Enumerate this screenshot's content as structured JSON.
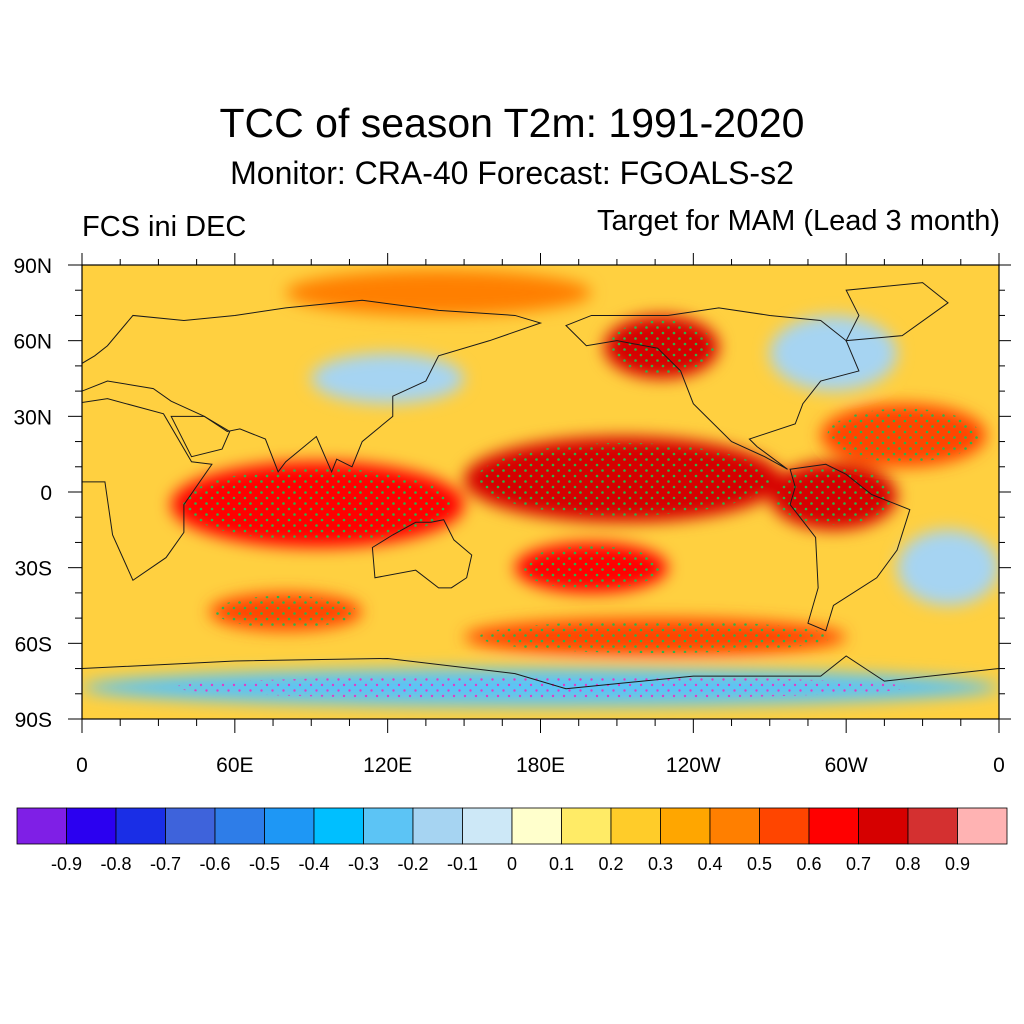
{
  "title": "TCC of season T2m: 1991-2020",
  "subtitle": "Monitor: CRA-40   Forecast: FGOALS-s2",
  "left_label": "FCS ini DEC",
  "right_label": "Target for MAM (Lead 3 month)",
  "map": {
    "projection": "cylindrical-equidistant",
    "lon_range": [
      0,
      360
    ],
    "lat_range": [
      -90,
      90
    ],
    "y_tick_labels": [
      "90N",
      "60N",
      "30N",
      "0",
      "30S",
      "60S",
      "90S"
    ],
    "x_tick_labels": [
      "0",
      "60E",
      "120E",
      "180E",
      "120W",
      "60W",
      "0"
    ],
    "stippling": "green dots mark statistically significant correlation",
    "anomaly_regions": [
      {
        "name": "central-east-pacific",
        "lon": [
          150,
          275
        ],
        "lat": [
          -12,
          22
        ],
        "level": 0.7
      },
      {
        "name": "indian-ocean-maritime",
        "lon": [
          35,
          150
        ],
        "lat": [
          -22,
          12
        ],
        "level": 0.6
      },
      {
        "name": "north-pacific-alaska",
        "lon": [
          205,
          250
        ],
        "lat": [
          45,
          70
        ],
        "level": 0.7
      },
      {
        "name": "south-pacific",
        "lon": [
          170,
          230
        ],
        "lat": [
          -40,
          -20
        ],
        "level": 0.6
      },
      {
        "name": "tropical-south-america",
        "lon": [
          270,
          320
        ],
        "lat": [
          -15,
          12
        ],
        "level": 0.7
      },
      {
        "name": "southern-ocean-band",
        "lon": [
          150,
          300
        ],
        "lat": [
          -65,
          -50
        ],
        "level": 0.5
      },
      {
        "name": "south-indian-ocean",
        "lon": [
          50,
          110
        ],
        "lat": [
          -55,
          -40
        ],
        "level": 0.5
      },
      {
        "name": "north-atlantic",
        "lon": [
          290,
          355
        ],
        "lat": [
          10,
          35
        ],
        "level": 0.5
      },
      {
        "name": "eurasia-north",
        "lon": [
          80,
          200
        ],
        "lat": [
          70,
          88
        ],
        "level": 0.4
      },
      {
        "name": "east-asia",
        "lon": [
          90,
          150
        ],
        "lat": [
          35,
          55
        ],
        "level": -0.2
      },
      {
        "name": "north-america-east",
        "lon": [
          270,
          320
        ],
        "lat": [
          40,
          70
        ],
        "level": -0.2
      },
      {
        "name": "antarctica-edge",
        "lon": [
          0,
          360
        ],
        "lat": [
          -85,
          -70
        ],
        "level": -0.3
      },
      {
        "name": "south-atlantic",
        "lon": [
          320,
          360
        ],
        "lat": [
          -45,
          -15
        ],
        "level": -0.2
      }
    ]
  },
  "colorbar": {
    "colors": [
      "#7f1fe6",
      "#2b00f0",
      "#1a2ee6",
      "#3e63db",
      "#2e7de8",
      "#1e97f5",
      "#00bfff",
      "#5cc4f5",
      "#a6d4f2",
      "#cde8f7",
      "#ffffcc",
      "#ffeb66",
      "#ffcc29",
      "#ffa600",
      "#ff7f00",
      "#ff4500",
      "#ff0000",
      "#d60000",
      "#d43030",
      "#ffb3b3"
    ],
    "labels": [
      "-0.9",
      "-0.8",
      "-0.7",
      "-0.6",
      "-0.5",
      "-0.4",
      "-0.3",
      "-0.2",
      "-0.1",
      "0",
      "0.1",
      "0.2",
      "0.3",
      "0.4",
      "0.5",
      "0.6",
      "0.7",
      "0.8",
      "0.9"
    ]
  }
}
